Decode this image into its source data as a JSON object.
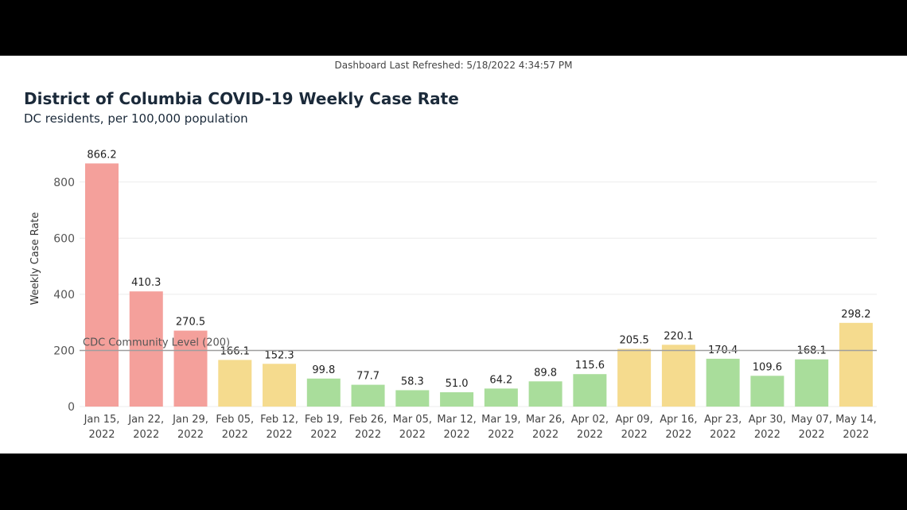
{
  "header": {
    "refreshed": "Dashboard Last Refreshed: 5/18/2022 4:34:57 PM"
  },
  "chart_data": {
    "type": "bar",
    "title": "District of Columbia COVID-19 Weekly Case Rate",
    "subtitle": "DC residents, per 100,000 population",
    "ylabel": "Weekly Case Rate",
    "xlabel": "",
    "ylim": [
      0,
      866.2
    ],
    "yticks": [
      0,
      200,
      400,
      600,
      800
    ],
    "grid": true,
    "reference_line": {
      "value": 200,
      "label": "CDC Community Level (200)",
      "color": "#9e9e9e"
    },
    "categories": [
      [
        "Jan 15,",
        "2022"
      ],
      [
        "Jan 22,",
        "2022"
      ],
      [
        "Jan 29,",
        "2022"
      ],
      [
        "Feb 05,",
        "2022"
      ],
      [
        "Feb 12,",
        "2022"
      ],
      [
        "Feb 19,",
        "2022"
      ],
      [
        "Feb 26,",
        "2022"
      ],
      [
        "Mar 05,",
        "2022"
      ],
      [
        "Mar 12,",
        "2022"
      ],
      [
        "Mar 19,",
        "2022"
      ],
      [
        "Mar 26,",
        "2022"
      ],
      [
        "Apr 02,",
        "2022"
      ],
      [
        "Apr 09,",
        "2022"
      ],
      [
        "Apr 16,",
        "2022"
      ],
      [
        "Apr 23,",
        "2022"
      ],
      [
        "Apr 30,",
        "2022"
      ],
      [
        "May 07,",
        "2022"
      ],
      [
        "May 14,",
        "2022"
      ]
    ],
    "values": [
      866.2,
      410.3,
      270.5,
      166.1,
      152.3,
      99.8,
      77.7,
      58.3,
      51.0,
      64.2,
      89.8,
      115.6,
      205.5,
      220.1,
      170.4,
      109.6,
      168.1,
      298.2
    ],
    "value_labels": [
      "866.2",
      "410.3",
      "270.5",
      "166.1",
      "152.3",
      "99.8",
      "77.7",
      "58.3",
      "51.0",
      "64.2",
      "89.8",
      "115.6",
      "205.5",
      "220.1",
      "170.4",
      "109.6",
      "168.1",
      "298.2"
    ],
    "bar_colors": [
      "#f4a09b",
      "#f4a09b",
      "#f4a09b",
      "#f5db8e",
      "#f5db8e",
      "#a9dd9b",
      "#a9dd9b",
      "#a9dd9b",
      "#a9dd9b",
      "#a9dd9b",
      "#a9dd9b",
      "#a9dd9b",
      "#f5db8e",
      "#f5db8e",
      "#a9dd9b",
      "#a9dd9b",
      "#a9dd9b",
      "#f5db8e"
    ]
  }
}
